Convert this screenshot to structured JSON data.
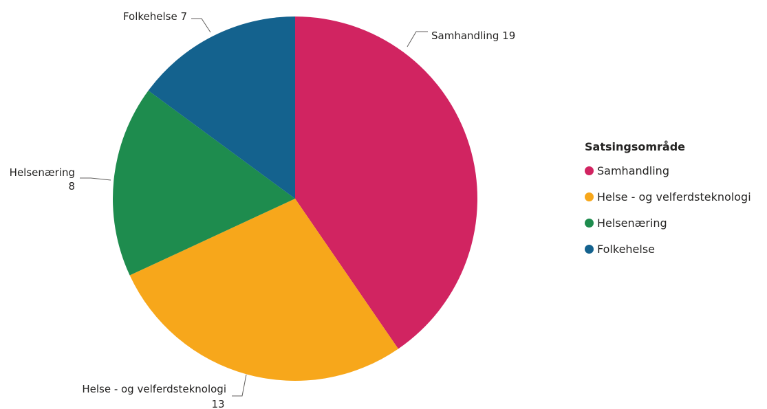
{
  "chart_data": {
    "type": "pie",
    "slices": [
      {
        "label": "Samhandling",
        "value": 19,
        "color": "#D12461"
      },
      {
        "label": "Helse - og velferdsteknologi",
        "value": 13,
        "color": "#F7A71B"
      },
      {
        "label": "Helsenæring",
        "value": 8,
        "color": "#1E8C4E"
      },
      {
        "label": "Folkehelse",
        "value": 7,
        "color": "#14628E"
      }
    ],
    "data_labels": {
      "samhandling": "Samhandling 19",
      "helseteknologi_line1": "Helse - og velferdsteknologi",
      "helseteknologi_line2": "13",
      "helsenaering_line1": "Helsenæring",
      "helsenaering_line2": "8",
      "folkehelse": "Folkehelse 7"
    },
    "legend": {
      "title": "Satsingsområde",
      "placement": "right",
      "items": [
        "Samhandling",
        "Helse - og velferdsteknologi",
        "Helsenæring",
        "Folkehelse"
      ]
    }
  }
}
